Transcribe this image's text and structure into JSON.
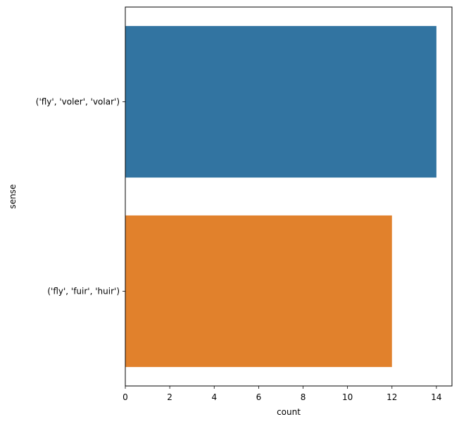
{
  "chart_data": {
    "type": "bar",
    "orientation": "horizontal",
    "categories": [
      "('fly', 'voler', 'volar')",
      "('fly', 'fuir', 'huir')"
    ],
    "values": [
      14,
      12
    ],
    "colors": [
      "#3274a1",
      "#e1812c"
    ],
    "xlabel": "count",
    "ylabel": "sense",
    "xlim": [
      0,
      14.7
    ],
    "xticks": [
      "0",
      "2",
      "4",
      "6",
      "8",
      "10",
      "12",
      "14"
    ],
    "grid": false,
    "legend": "none"
  }
}
